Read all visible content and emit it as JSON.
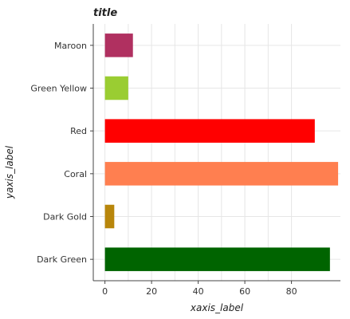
{
  "chart_data": {
    "type": "bar",
    "orientation": "horizontal",
    "title": "title",
    "xlabel": "xaxis_label",
    "ylabel": "yaxis_label",
    "categories": [
      "Dark Green",
      "Dark Gold",
      "Coral",
      "Red",
      "Green Yellow",
      "Maroon"
    ],
    "values": [
      96.5,
      4,
      100,
      90,
      10,
      12
    ],
    "colors": [
      "#006400",
      "#b8860b",
      "#ff7f50",
      "#ff0000",
      "#9acd32",
      "#b03060"
    ],
    "xticks": [
      0,
      20,
      40,
      60,
      80
    ],
    "xlim": [
      -5,
      101
    ],
    "grid": true
  }
}
